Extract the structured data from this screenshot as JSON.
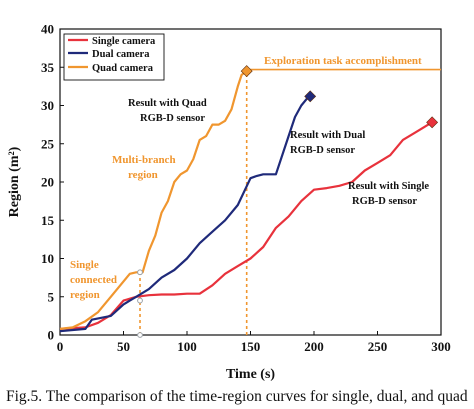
{
  "caption": "Fig.5. The comparison of the time-region curves for single, dual, and quad",
  "chart_data": {
    "type": "line",
    "title": "",
    "xlabel": "Time (s)",
    "ylabel": "Region (m²)",
    "xlim": [
      0,
      300
    ],
    "ylim": [
      0,
      40
    ],
    "xticks": [
      0,
      50,
      100,
      150,
      200,
      250,
      300
    ],
    "yticks": [
      0,
      5,
      10,
      15,
      20,
      25,
      30,
      35,
      40
    ],
    "grid": false,
    "legend": {
      "placement": "top-left",
      "entries": [
        "Single camera",
        "Dual camera",
        "Quad camera"
      ]
    },
    "series": [
      {
        "name": "Single camera",
        "color": "#e8323c",
        "end_marker": "diamond",
        "x": [
          0,
          20,
          30,
          40,
          50,
          60,
          70,
          80,
          90,
          100,
          110,
          120,
          130,
          140,
          150,
          160,
          170,
          180,
          190,
          200,
          210,
          220,
          230,
          240,
          250,
          260,
          270,
          280,
          290,
          293
        ],
        "y": [
          0.8,
          1.0,
          1.6,
          2.6,
          4.5,
          5.0,
          5.2,
          5.3,
          5.3,
          5.4,
          5.4,
          6.5,
          8.0,
          9.0,
          10.0,
          11.5,
          14.0,
          15.5,
          17.5,
          19.0,
          19.2,
          19.5,
          20.0,
          21.5,
          22.5,
          23.5,
          25.5,
          26.5,
          27.5,
          27.8
        ]
      },
      {
        "name": "Dual camera",
        "color": "#1f2a7a",
        "end_marker": "diamond",
        "x": [
          0,
          20,
          25,
          40,
          50,
          55,
          60,
          70,
          80,
          90,
          100,
          110,
          120,
          130,
          140,
          150,
          155,
          160,
          170,
          180,
          185,
          190,
          195,
          197
        ],
        "y": [
          0.5,
          0.8,
          2.0,
          2.5,
          4.0,
          4.5,
          5.0,
          6.0,
          7.5,
          8.5,
          10.0,
          12.0,
          13.5,
          15.0,
          17.0,
          20.5,
          20.8,
          21.0,
          21.0,
          26.0,
          28.5,
          30.0,
          31.0,
          31.2
        ]
      },
      {
        "name": "Quad camera",
        "color": "#f0962f",
        "end_marker": "diamond",
        "x": [
          0,
          10,
          20,
          30,
          40,
          50,
          55,
          60,
          65,
          70,
          75,
          80,
          85,
          90,
          95,
          100,
          105,
          110,
          115,
          120,
          125,
          130,
          135,
          140,
          143,
          147
        ],
        "y": [
          0.8,
          1.0,
          1.8,
          3.0,
          5.0,
          7.0,
          8.0,
          8.2,
          8.2,
          11.0,
          13.0,
          16.0,
          17.5,
          20.0,
          21.0,
          21.5,
          23.0,
          25.5,
          26.0,
          27.5,
          27.5,
          28.0,
          29.5,
          32.5,
          34.0,
          34.5
        ]
      }
    ],
    "reference_lines": [
      {
        "orientation": "horizontal",
        "y": 34.7,
        "x_from": 147,
        "x_to": 300,
        "color": "#f0962f",
        "style": "solid"
      },
      {
        "orientation": "vertical",
        "x": 147,
        "y_from": 0,
        "y_to": 34.7,
        "color": "#f0962f",
        "style": "dashed"
      },
      {
        "orientation": "vertical",
        "x": 63,
        "y_from": 0,
        "y_to": 8.2,
        "color": "#f0962f",
        "style": "dashed"
      }
    ],
    "point_markers": [
      {
        "x": 63,
        "y": 8.2,
        "shape": "circle"
      },
      {
        "x": 63,
        "y": 4.5,
        "shape": "circle"
      },
      {
        "x": 63,
        "y": 0,
        "shape": "circle"
      }
    ],
    "annotations": [
      {
        "text": "Exploration task accomplishment",
        "color": "#f0962f"
      },
      {
        "text": "Result with Quad",
        "color": "#111111"
      },
      {
        "text": "RGB-D sensor",
        "color": "#111111"
      },
      {
        "text": "Result with Dual",
        "color": "#111111"
      },
      {
        "text": "RGB-D sensor",
        "color": "#111111"
      },
      {
        "text": "Result with Single",
        "color": "#111111"
      },
      {
        "text": "RGB-D sensor",
        "color": "#111111"
      },
      {
        "text": "Multi-branch",
        "color": "#f0962f"
      },
      {
        "text": "region",
        "color": "#f0962f"
      },
      {
        "text": "Single",
        "color": "#f0962f"
      },
      {
        "text": "connected",
        "color": "#f0962f"
      },
      {
        "text": "region",
        "color": "#f0962f"
      }
    ]
  }
}
